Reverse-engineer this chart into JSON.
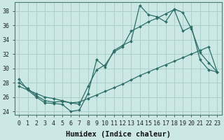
{
  "bg_color": "#cce8e4",
  "grid_color": "#aacfcb",
  "line_color": "#2d6e68",
  "xlabel": "Humidex (Indice chaleur)",
  "xlabel_fontsize": 7.5,
  "tick_fontsize": 6.0,
  "xlim_min": -0.5,
  "xlim_max": 23.5,
  "ylim_min": 23.5,
  "ylim_max": 39.2,
  "yticks": [
    24,
    26,
    28,
    30,
    32,
    34,
    36,
    38
  ],
  "xticks": [
    0,
    1,
    2,
    3,
    4,
    5,
    6,
    7,
    8,
    9,
    10,
    11,
    12,
    13,
    14,
    15,
    16,
    17,
    18,
    19,
    20,
    21,
    22,
    23
  ],
  "line1_x": [
    0,
    1,
    2,
    3,
    4,
    5,
    6,
    7,
    8,
    9,
    10,
    11,
    12,
    13,
    14,
    15,
    16,
    17,
    18,
    19,
    20,
    21,
    22,
    23
  ],
  "line1_y": [
    28.5,
    27.0,
    26.0,
    25.2,
    25.1,
    25.0,
    24.0,
    24.2,
    26.5,
    31.2,
    30.2,
    32.5,
    33.2,
    33.8,
    38.8,
    37.5,
    37.2,
    36.5,
    38.3,
    37.8,
    35.5,
    32.2,
    30.8,
    29.5
  ],
  "line2_x": [
    0,
    1,
    2,
    3,
    4,
    5,
    6,
    7,
    8,
    9,
    10,
    11,
    12,
    13,
    14,
    15,
    16,
    17,
    18,
    19,
    20,
    21,
    22,
    23
  ],
  "line2_y": [
    28.0,
    27.2,
    26.2,
    25.5,
    25.3,
    25.4,
    25.2,
    25.0,
    27.5,
    29.8,
    30.5,
    32.3,
    33.0,
    35.2,
    35.8,
    36.5,
    37.0,
    37.6,
    38.2,
    35.2,
    35.8,
    31.2,
    29.8,
    29.5
  ],
  "line3_x": [
    0,
    1,
    2,
    3,
    4,
    5,
    6,
    7,
    8,
    9,
    10,
    11,
    12,
    13,
    14,
    15,
    16,
    17,
    18,
    19,
    20,
    21,
    22,
    23
  ],
  "line3_y": [
    27.5,
    27.0,
    26.5,
    26.0,
    25.8,
    25.5,
    25.2,
    25.3,
    25.8,
    26.3,
    26.8,
    27.3,
    27.8,
    28.4,
    29.0,
    29.5,
    30.0,
    30.5,
    31.0,
    31.5,
    32.0,
    32.5,
    33.0,
    29.5
  ]
}
